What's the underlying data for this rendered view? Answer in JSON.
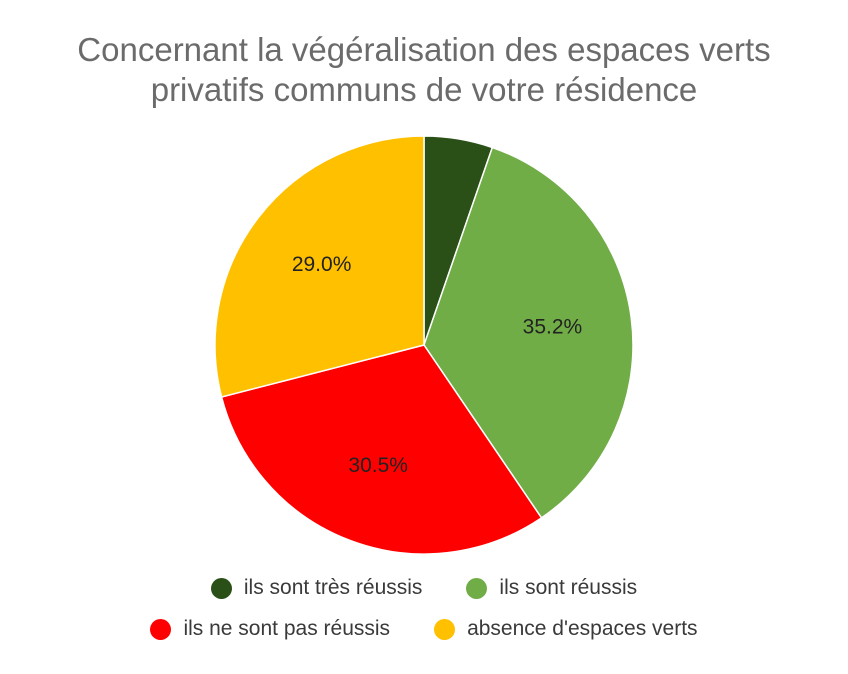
{
  "chart_data": {
    "type": "pie",
    "title_lines": [
      "Concernant la végéralisation des espaces verts",
      "privatifs communs de votre résidence"
    ],
    "categories": [
      "ils sont très réussis",
      "ils sont réussis",
      "ils ne sont pas réussis",
      "absence d'espaces verts"
    ],
    "values": [
      5.3,
      35.2,
      30.5,
      29.0
    ],
    "labels": [
      "",
      "35.2%",
      "30.5%",
      "29.0%"
    ],
    "colors": [
      "#2a5018",
      "#70ad47",
      "#ff0000",
      "#ffc000"
    ],
    "legend_position": "bottom",
    "start_angle_deg": 0,
    "direction": "clockwise"
  }
}
